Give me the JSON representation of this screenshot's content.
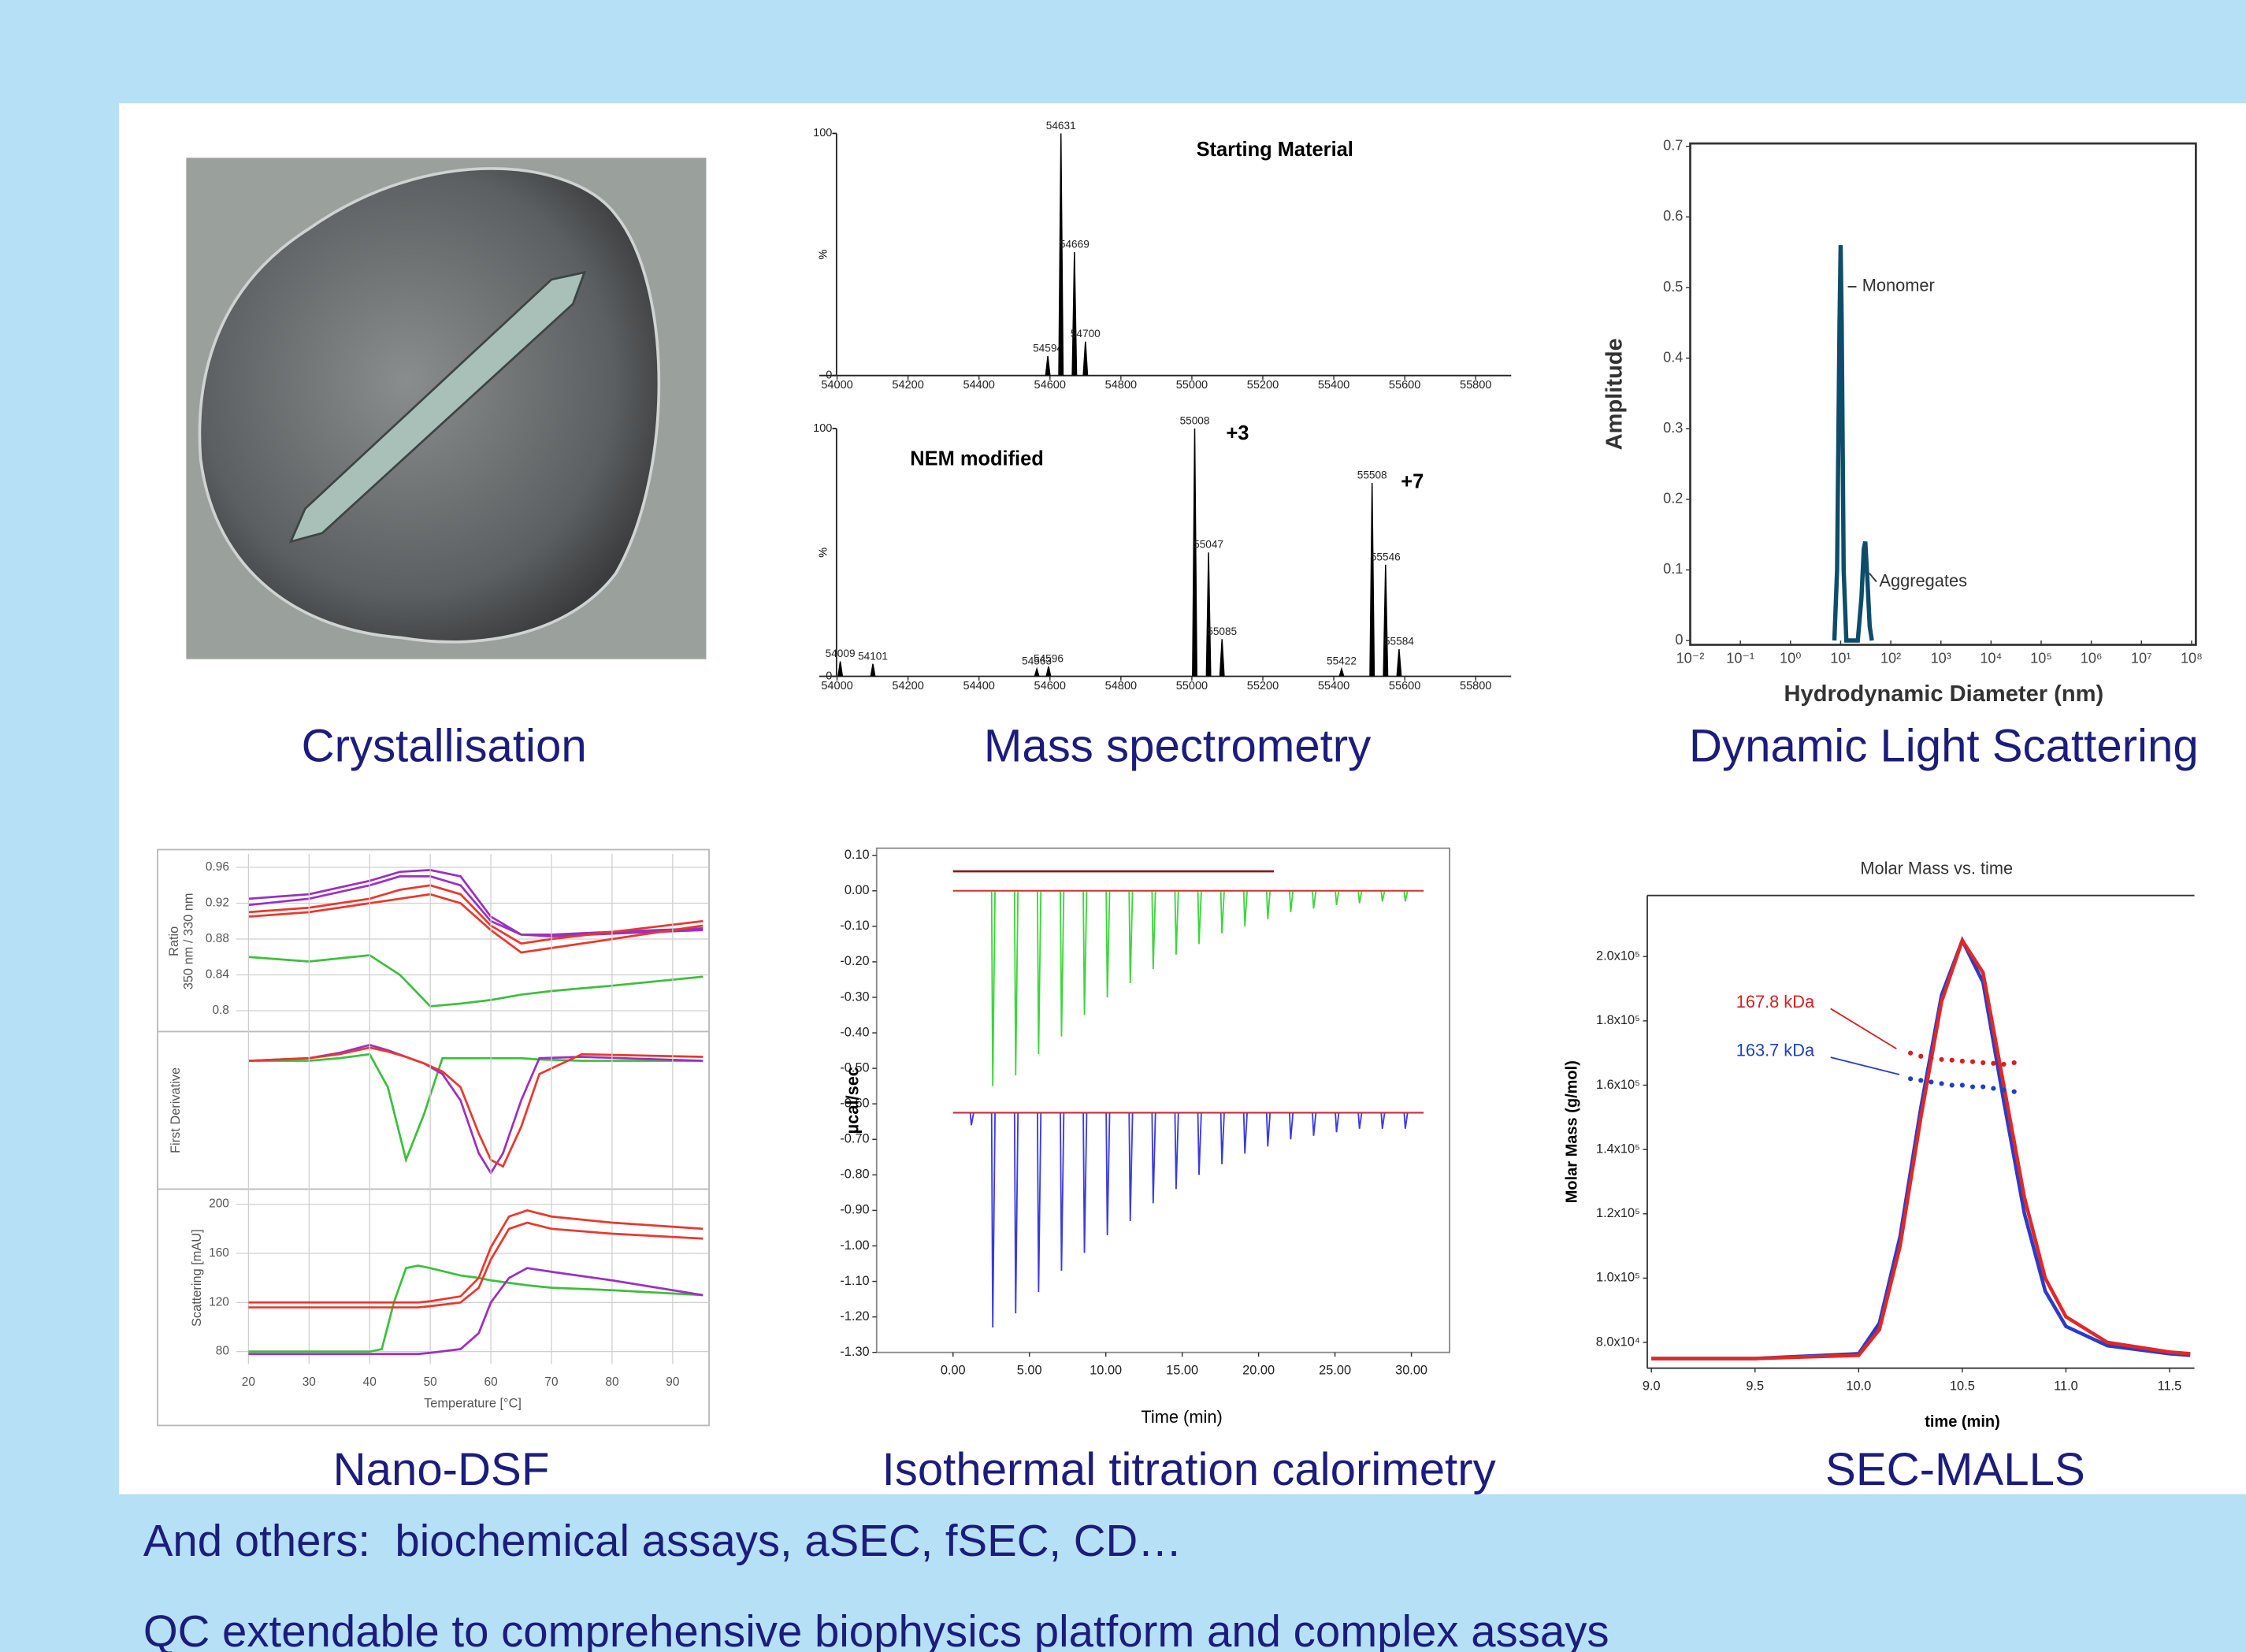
{
  "captions": [
    "Crystallisation",
    "Mass spectrometry",
    "Dynamic Light Scattering",
    "Nano-DSF",
    "Isothermal titration calorimetry",
    "SEC-MALLS"
  ],
  "notes": [
    "And others:  biochemical assays, aSEC, fSEC, CD…",
    "QC extendable to comprehensive biophysics platform and complex assays"
  ],
  "chart_data": [
    {
      "type": "spectrum",
      "title": "Starting Material",
      "xlim": [
        53950,
        55900
      ],
      "xticks": [
        54000,
        54200,
        54400,
        54600,
        54800,
        55000,
        55200,
        55400,
        55600,
        55800
      ],
      "ylim": [
        0,
        100
      ],
      "yticks": [
        0,
        100
      ],
      "ylabel": "%",
      "color": "#000000",
      "x": [
        54594,
        54631,
        54669,
        54700
      ],
      "values": [
        8,
        100,
        51,
        14
      ]
    },
    {
      "type": "spectrum",
      "title": "NEM modified",
      "annotations": [
        "+3",
        "+7"
      ],
      "xlim": [
        53950,
        55900
      ],
      "xticks": [
        54000,
        54200,
        54400,
        54600,
        54800,
        55000,
        55200,
        55400,
        55600,
        55800
      ],
      "ylim": [
        0,
        100
      ],
      "yticks": [
        0,
        100
      ],
      "ylabel": "%",
      "color": "#000000",
      "x": [
        54009,
        54101,
        54563,
        54596,
        55008,
        55047,
        55085,
        55422,
        55508,
        55546,
        55584
      ],
      "values": [
        6,
        5,
        3,
        4,
        100,
        50,
        15,
        3,
        78,
        45,
        11
      ]
    },
    {
      "type": "line",
      "xscale": "log",
      "xlabel": "Hydrodynamic Diameter (nm)",
      "ylabel": "Amplitude",
      "annotations": [
        "Monomer",
        "Aggregates"
      ],
      "xlim": [
        0.01,
        100000000
      ],
      "xticks": [
        {
          "value": 0.01,
          "label": "10⁻²"
        },
        {
          "value": 0.1,
          "label": "10⁻¹"
        },
        {
          "value": 1,
          "label": "10⁰"
        },
        {
          "value": 10,
          "label": "10¹"
        },
        {
          "value": 100,
          "label": "10²"
        },
        {
          "value": 1000,
          "label": "10³"
        },
        {
          "value": 10000,
          "label": "10⁴"
        },
        {
          "value": 100000,
          "label": "10⁵"
        },
        {
          "value": 1000000,
          "label": "10⁶"
        },
        {
          "value": 10000000,
          "label": "10⁷"
        },
        {
          "value": 100000000,
          "label": "10⁸"
        }
      ],
      "ylim": [
        0,
        0.7
      ],
      "yticks": [
        0,
        0.1,
        0.2,
        0.3,
        0.4,
        0.5,
        0.6,
        0.7
      ],
      "x": [
        7.5,
        8.5,
        9.5,
        10,
        10.5,
        11.5,
        13,
        22,
        26,
        29,
        31,
        34,
        38,
        42
      ],
      "series": [
        {
          "color": "#0d4d6b",
          "values": [
            0,
            0.1,
            0.45,
            0.56,
            0.45,
            0.1,
            0,
            0,
            0.06,
            0.13,
            0.14,
            0.09,
            0.02,
            0
          ]
        }
      ]
    },
    {
      "type": "line",
      "ylabel": [
        "Ratio",
        "350 nm / 330 nm"
      ],
      "xlim": [
        18,
        96
      ],
      "ylim": [
        0.78,
        0.975
      ],
      "yticks": [
        0.8,
        0.84,
        0.88,
        0.92,
        0.96
      ],
      "grid": true,
      "x": [
        20,
        30,
        40,
        45,
        50,
        55,
        60,
        65,
        70,
        80,
        95
      ],
      "series": [
        {
          "color": "#9b30c0",
          "values": [
            0.918,
            0.925,
            0.94,
            0.95,
            0.95,
            0.94,
            0.9,
            0.885,
            0.885,
            0.888,
            0.892
          ]
        },
        {
          "color": "#9b30c0",
          "values": [
            0.925,
            0.93,
            0.945,
            0.955,
            0.957,
            0.95,
            0.905,
            0.885,
            0.883,
            0.886,
            0.89
          ]
        },
        {
          "color": "#e8382e",
          "values": [
            0.91,
            0.915,
            0.925,
            0.935,
            0.94,
            0.93,
            0.895,
            0.875,
            0.88,
            0.888,
            0.9
          ]
        },
        {
          "color": "#e8382e",
          "values": [
            0.905,
            0.91,
            0.92,
            0.925,
            0.93,
            0.92,
            0.89,
            0.865,
            0.87,
            0.88,
            0.895
          ]
        },
        {
          "color": "#3cbf3c",
          "values": [
            0.86,
            0.855,
            0.862,
            0.84,
            0.805,
            0.808,
            0.812,
            0.818,
            0.822,
            0.828,
            0.838
          ]
        }
      ]
    },
    {
      "type": "line",
      "ylabel": "First Derivative",
      "xlim": [
        18,
        96
      ],
      "ylim": [
        -0.95,
        0.2
      ],
      "grid": true,
      "x": [
        20,
        30,
        35,
        40,
        43,
        46,
        49,
        52,
        55,
        58,
        60,
        62,
        65,
        68,
        75,
        95
      ],
      "series": [
        {
          "color": "#3cbf3c",
          "values": [
            0,
            0,
            0.02,
            0.05,
            -0.2,
            -0.75,
            -0.4,
            0.02,
            0.02,
            0.02,
            0.02,
            0.02,
            0.02,
            0.01,
            0,
            0
          ]
        },
        {
          "color": "#9b30c0",
          "values": [
            0,
            0.02,
            0.06,
            0.12,
            0.08,
            0.03,
            -0.02,
            -0.1,
            -0.3,
            -0.7,
            -0.85,
            -0.7,
            -0.3,
            0.02,
            0.03,
            0
          ]
        },
        {
          "color": "#e8382e",
          "values": [
            0,
            0.02,
            0.05,
            0.1,
            0.07,
            0.03,
            -0.02,
            -0.08,
            -0.2,
            -0.55,
            -0.75,
            -0.8,
            -0.5,
            -0.1,
            0.05,
            0.03
          ]
        }
      ]
    },
    {
      "type": "line",
      "xlabel": "Temperature [°C]",
      "ylabel": "Scattering [mAU]",
      "xlim": [
        18,
        96
      ],
      "xticks": [
        20,
        30,
        40,
        50,
        60,
        70,
        80,
        90
      ],
      "ylim": [
        70,
        210
      ],
      "yticks": [
        80,
        120,
        160,
        200
      ],
      "grid": true,
      "x": [
        20,
        40,
        42,
        44,
        46,
        48,
        50,
        55,
        58,
        60,
        63,
        66,
        70,
        80,
        95
      ],
      "series": [
        {
          "color": "#3cbf3c",
          "values": [
            80,
            80,
            82,
            120,
            148,
            150,
            148,
            142,
            140,
            138,
            136,
            134,
            132,
            130,
            126
          ]
        },
        {
          "color": "#9b30c0",
          "values": [
            78,
            78,
            78,
            78,
            78,
            78,
            79,
            82,
            95,
            120,
            140,
            148,
            145,
            138,
            126
          ]
        },
        {
          "color": "#e8382e",
          "values": [
            120,
            120,
            120,
            120,
            120,
            120,
            121,
            125,
            140,
            165,
            190,
            195,
            190,
            185,
            180
          ]
        },
        {
          "color": "#e8382e",
          "values": [
            116,
            116,
            116,
            116,
            116,
            116,
            117,
            120,
            132,
            155,
            180,
            185,
            180,
            176,
            172
          ]
        }
      ]
    },
    {
      "type": "itc",
      "xlabel": "Time (min)",
      "ylabel": "µcal/sec",
      "xlim": [
        -5,
        32.5
      ],
      "ylim": [
        -1.3,
        0.12
      ],
      "xticks": [
        {
          "value": 0,
          "label": "0.00"
        },
        {
          "value": 5,
          "label": "5.00"
        },
        {
          "value": 10,
          "label": "10.00"
        },
        {
          "value": 15,
          "label": "15.00"
        },
        {
          "value": 20,
          "label": "20.00"
        },
        {
          "value": 25,
          "label": "25.00"
        },
        {
          "value": 30,
          "label": "30.00"
        }
      ],
      "yticks": [
        {
          "value": 0.1,
          "label": "0.10"
        },
        {
          "value": 0,
          "label": "0.00"
        },
        {
          "value": -0.1,
          "label": "-0.10"
        },
        {
          "value": -0.2,
          "label": "-0.20"
        },
        {
          "value": -0.3,
          "label": "-0.30"
        },
        {
          "value": -0.4,
          "label": "-0.40"
        },
        {
          "value": -0.5,
          "label": "-0.50"
        },
        {
          "value": -0.6,
          "label": "-0.60"
        },
        {
          "value": -0.7,
          "label": "-0.70"
        },
        {
          "value": -0.8,
          "label": "-0.80"
        },
        {
          "value": -0.9,
          "label": "-0.90"
        },
        {
          "value": -1,
          "label": "-1.00"
        },
        {
          "value": -1.1,
          "label": "-1.10"
        },
        {
          "value": -1.2,
          "label": "-1.20"
        },
        {
          "value": -1.3,
          "label": "-1.30"
        }
      ],
      "series": [
        {
          "kind": "line",
          "color": "#8b1a1a",
          "x": [
            0,
            21
          ],
          "values": [
            0.055,
            0.055
          ]
        },
        {
          "kind": "injections",
          "color": "#3cd63c",
          "baseline_color": "#d33030",
          "baseline": 0,
          "span": [
            0,
            30.8
          ],
          "x": [
            2.6,
            4.1,
            5.6,
            7.1,
            8.6,
            10.1,
            11.6,
            13.1,
            14.6,
            16.1,
            17.6,
            19.1,
            20.6,
            22.1,
            23.6,
            25.1,
            26.6,
            28.1,
            29.6
          ],
          "values": [
            -0.55,
            -0.52,
            -0.46,
            -0.41,
            -0.35,
            -0.3,
            -0.26,
            -0.22,
            -0.18,
            -0.15,
            -0.12,
            -0.1,
            -0.08,
            -0.06,
            -0.05,
            -0.04,
            -0.035,
            -0.03,
            -0.03
          ]
        },
        {
          "kind": "injections",
          "color": "#3a3ae0",
          "baseline_color": "#d33030",
          "baseline": -0.625,
          "span": [
            0,
            30.8
          ],
          "x": [
            1.2,
            2.6,
            4.1,
            5.6,
            7.1,
            8.6,
            10.1,
            11.6,
            13.1,
            14.6,
            16.1,
            17.6,
            19.1,
            20.6,
            22.1,
            23.6,
            25.1,
            26.6,
            28.1,
            29.6
          ],
          "values": [
            -0.66,
            -1.23,
            -1.19,
            -1.13,
            -1.07,
            -1.02,
            -0.97,
            -0.93,
            -0.88,
            -0.84,
            -0.8,
            -0.77,
            -0.74,
            -0.72,
            -0.7,
            -0.69,
            -0.68,
            -0.67,
            -0.67,
            -0.67
          ]
        }
      ]
    },
    {
      "type": "line",
      "title": "Molar Mass vs. time",
      "xlabel": "time (min)",
      "ylabel": "Molar Mass (g/mol)",
      "annotations": [
        "167.8 kDa",
        "163.7 kDa"
      ],
      "xlim": [
        8.98,
        11.62
      ],
      "xticks": [
        {
          "value": 9,
          "label": "9.0"
        },
        9.5,
        {
          "value": 10,
          "label": "10.0"
        },
        10.5,
        {
          "value": 11,
          "label": "11.0"
        },
        11.5
      ],
      "ylim": [
        72000,
        219000
      ],
      "yticks": [
        {
          "value": 80000,
          "label": "8.0x10⁴"
        },
        {
          "value": 100000,
          "label": "1.0x10⁵"
        },
        {
          "value": 120000,
          "label": "1.2x10⁵"
        },
        {
          "value": 140000,
          "label": "1.4x10⁵"
        },
        {
          "value": 160000,
          "label": "1.6x10⁵"
        },
        {
          "value": 180000,
          "label": "1.8x10⁵"
        },
        {
          "value": 200000,
          "label": "2.0x10⁵"
        }
      ],
      "x": [
        9.0,
        9.5,
        10.0,
        10.1,
        10.2,
        10.3,
        10.4,
        10.5,
        10.6,
        10.7,
        10.8,
        10.9,
        11.0,
        11.2,
        11.5,
        11.6
      ],
      "series": [
        {
          "color": "#2a3cc8",
          "values": [
            75000,
            75000,
            76500,
            86000,
            113000,
            153000,
            188000,
            205000,
            192000,
            155000,
            120000,
            96000,
            85000,
            79000,
            76500,
            76000
          ]
        },
        {
          "color": "#e02828",
          "values": [
            75000,
            75000,
            76000,
            84000,
            110000,
            150000,
            186000,
            205000,
            195000,
            160000,
            125000,
            100000,
            88000,
            80000,
            77000,
            76500
          ]
        },
        {
          "color": "#d62020",
          "marker": true,
          "x": [
            10.25,
            10.3,
            10.35,
            10.4,
            10.45,
            10.5,
            10.55,
            10.6,
            10.65,
            10.7,
            10.75
          ],
          "values": [
            170000,
            169000,
            168500,
            168000,
            167800,
            167500,
            167300,
            167000,
            166800,
            166500,
            167000
          ]
        },
        {
          "color": "#2040c0",
          "marker": true,
          "x": [
            10.25,
            10.3,
            10.35,
            10.4,
            10.45,
            10.5,
            10.55,
            10.6,
            10.65,
            10.7,
            10.75
          ],
          "values": [
            162000,
            161500,
            161000,
            160500,
            160000,
            160000,
            159500,
            159500,
            159000,
            158500,
            158000
          ]
        }
      ]
    }
  ]
}
